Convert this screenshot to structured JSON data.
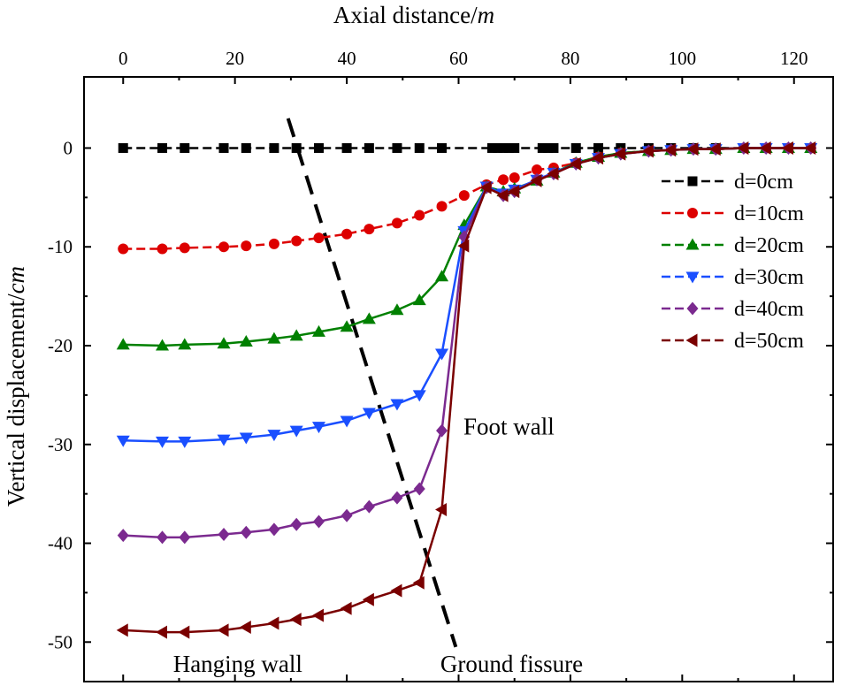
{
  "chart_data": {
    "type": "line",
    "xlabel_text": "Axial distance/",
    "xlabel_unit": "m",
    "ylabel_text": "Vertical displacement/",
    "ylabel_unit": "cm",
    "xlim": [
      -7,
      127
    ],
    "ylim": [
      -54,
      7.2
    ],
    "x_ticks": [
      "0",
      "20",
      "40",
      "60",
      "80",
      "100",
      "120"
    ],
    "y_ticks": [
      "0",
      "-10",
      "-20",
      "-30",
      "-40",
      "-50"
    ],
    "x_tick_values": [
      0,
      20,
      40,
      60,
      80,
      100,
      120
    ],
    "y_tick_values": [
      0,
      -10,
      -20,
      -30,
      -40,
      -50
    ],
    "grid": false,
    "legend_position": "right",
    "x_axis_position": "top",
    "series": [
      {
        "name": "d=0cm",
        "color": "#000000",
        "marker": "square",
        "x": [
          0,
          7,
          11,
          18,
          22,
          27,
          31,
          35,
          40,
          44,
          49,
          53,
          57,
          66,
          67,
          68,
          69,
          70,
          75,
          76,
          77,
          81,
          85,
          89,
          94,
          98,
          102,
          106,
          111,
          115,
          119,
          123
        ],
        "y": [
          0,
          0,
          0,
          0,
          0,
          0,
          0,
          0,
          0,
          0,
          0,
          0,
          0,
          0,
          0,
          0,
          0,
          0,
          0,
          0,
          0,
          0,
          0,
          0,
          0,
          0,
          0,
          0,
          0,
          0,
          0,
          0
        ]
      },
      {
        "name": "d=10cm",
        "color": "#dd0000",
        "marker": "circle",
        "x": [
          0,
          7,
          11,
          18,
          22,
          27,
          31,
          35,
          40,
          44,
          49,
          53,
          57,
          61,
          65,
          68,
          70,
          74,
          77,
          81,
          85,
          89,
          94,
          98,
          102,
          106,
          111,
          115,
          119,
          123
        ],
        "y": [
          -10.2,
          -10.2,
          -10.1,
          -10.0,
          -9.9,
          -9.7,
          -9.4,
          -9.1,
          -8.7,
          -8.2,
          -7.6,
          -6.8,
          -5.9,
          -4.8,
          -3.7,
          -3.2,
          -3.0,
          -2.2,
          -2.0,
          -1.5,
          -0.9,
          -0.5,
          -0.3,
          -0.2,
          -0.1,
          -0.1,
          0,
          0,
          0,
          0
        ]
      },
      {
        "name": "d=20cm",
        "color": "#008000",
        "marker": "triangle-up",
        "x": [
          0,
          7,
          11,
          18,
          22,
          27,
          31,
          35,
          40,
          44,
          49,
          53,
          57,
          61,
          65,
          68,
          70,
          74,
          77,
          81,
          85,
          89,
          94,
          98,
          102,
          106,
          111,
          115,
          119,
          123
        ],
        "y": [
          -19.9,
          -20.0,
          -19.9,
          -19.8,
          -19.6,
          -19.3,
          -19.0,
          -18.6,
          -18.1,
          -17.3,
          -16.4,
          -15.4,
          -13.0,
          -7.8,
          -3.9,
          -4.4,
          -4.1,
          -3.3,
          -2.5,
          -1.5,
          -0.9,
          -0.5,
          -0.3,
          -0.2,
          -0.1,
          -0.1,
          0,
          0,
          0,
          0
        ]
      },
      {
        "name": "d=30cm",
        "color": "#1a4fff",
        "marker": "triangle-down",
        "x": [
          0,
          7,
          11,
          18,
          22,
          27,
          31,
          35,
          40,
          44,
          49,
          53,
          57,
          61,
          65,
          68,
          70,
          74,
          77,
          81,
          85,
          89,
          94,
          98,
          102,
          106,
          111,
          115,
          119,
          123
        ],
        "y": [
          -29.6,
          -29.7,
          -29.7,
          -29.5,
          -29.3,
          -29.0,
          -28.6,
          -28.2,
          -27.6,
          -26.8,
          -25.9,
          -25.0,
          -20.8,
          -8.4,
          -3.9,
          -4.6,
          -4.2,
          -3.2,
          -2.5,
          -1.6,
          -1.0,
          -0.6,
          -0.3,
          -0.2,
          -0.1,
          -0.1,
          0,
          0,
          0,
          0
        ]
      },
      {
        "name": "d=40cm",
        "color": "#7b2a8f",
        "marker": "diamond",
        "x": [
          0,
          7,
          11,
          18,
          22,
          27,
          31,
          35,
          40,
          44,
          49,
          53,
          57,
          61,
          65,
          68,
          70,
          74,
          77,
          81,
          85,
          89,
          94,
          98,
          102,
          106,
          111,
          115,
          119,
          123
        ],
        "y": [
          -39.2,
          -39.4,
          -39.4,
          -39.1,
          -38.9,
          -38.6,
          -38.1,
          -37.8,
          -37.2,
          -36.3,
          -35.4,
          -34.5,
          -28.6,
          -9.0,
          -4.0,
          -4.8,
          -4.4,
          -3.2,
          -2.6,
          -1.6,
          -1.0,
          -0.6,
          -0.3,
          -0.2,
          -0.1,
          -0.1,
          0,
          0,
          0,
          0
        ]
      },
      {
        "name": "d=50cm",
        "color": "#7a0000",
        "marker": "triangle-left",
        "x": [
          0,
          7,
          11,
          18,
          22,
          27,
          31,
          35,
          40,
          44,
          49,
          53,
          57,
          61,
          65,
          68,
          70,
          74,
          77,
          81,
          85,
          89,
          94,
          98,
          102,
          106,
          111,
          115,
          119,
          123
        ],
        "y": [
          -48.8,
          -49.0,
          -49.0,
          -48.8,
          -48.5,
          -48.1,
          -47.7,
          -47.3,
          -46.6,
          -45.7,
          -44.8,
          -44.0,
          -36.6,
          -9.9,
          -4.0,
          -4.8,
          -4.4,
          -3.3,
          -2.6,
          -1.6,
          -1.0,
          -0.6,
          -0.3,
          -0.2,
          -0.1,
          -0.1,
          0,
          0,
          0,
          0
        ]
      }
    ],
    "fissure_line": {
      "x": [
        29.5,
        59.5
      ],
      "y": [
        3.0,
        -50.5
      ]
    },
    "annotations": [
      {
        "text": "Foot wall",
        "x": 69,
        "y": -29
      },
      {
        "text": "Hanging wall",
        "x": 20.5,
        "y": -53
      },
      {
        "text": "Ground fissure",
        "x": 69.5,
        "y": -53
      }
    ]
  }
}
